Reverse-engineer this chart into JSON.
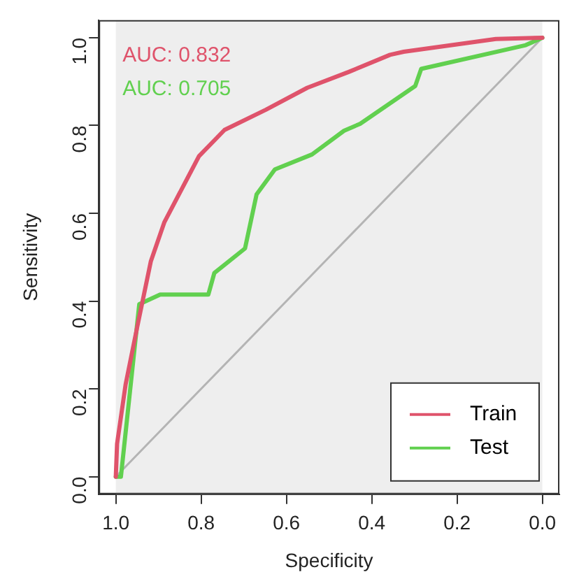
{
  "chart_data": {
    "type": "line",
    "xlabel": "Specificity",
    "ylabel": "Sensitivity",
    "xlim": [
      1.04,
      -0.04
    ],
    "ylim": [
      -0.04,
      1.04
    ],
    "xticks": [
      {
        "value": 1,
        "label": "1.0"
      },
      {
        "value": 0.8,
        "label": "0.8"
      },
      {
        "value": 0.6,
        "label": "0.6"
      },
      {
        "value": 0.4,
        "label": "0.4"
      },
      {
        "value": 0.2,
        "label": "0.2"
      },
      {
        "value": 0,
        "label": "0.0"
      }
    ],
    "yticks": [
      {
        "value": 0,
        "label": "0.0"
      },
      {
        "value": 0.2,
        "label": "0.2"
      },
      {
        "value": 0.4,
        "label": "0.4"
      },
      {
        "value": 0.6,
        "label": "0.6"
      },
      {
        "value": 0.8,
        "label": "0.8"
      },
      {
        "value": 1,
        "label": "1.0"
      }
    ],
    "bands": [
      {
        "axis": "x",
        "from": 1,
        "to": 0,
        "color": "#eeeeee"
      }
    ],
    "series": [
      {
        "name": "Train",
        "type": "line",
        "color": "#df536b",
        "x": [
          1,
          0.997,
          0.977,
          0.95,
          0.918,
          0.886,
          0.805,
          0.745,
          0.648,
          0.551,
          0.454,
          0.357,
          0.325,
          0.109,
          0
        ],
        "values": [
          0,
          0.075,
          0.21,
          0.34,
          0.49,
          0.58,
          0.73,
          0.79,
          0.836,
          0.886,
          0.922,
          0.961,
          0.968,
          0.997,
          1
        ]
      },
      {
        "name": "Test",
        "color": "#61d04f",
        "x": [
          1,
          0.988,
          0.945,
          0.896,
          0.783,
          0.769,
          0.697,
          0.67,
          0.627,
          0.54,
          0.465,
          0.427,
          0.298,
          0.284,
          0.039,
          0
        ],
        "values": [
          0,
          0,
          0.393,
          0.415,
          0.415,
          0.464,
          0.52,
          0.643,
          0.7,
          0.734,
          0.788,
          0.804,
          0.89,
          0.929,
          0.983,
          1
        ]
      },
      {
        "type": "line",
        "color": "#b4b4b4",
        "x": [
          1,
          0.5,
          0
        ],
        "values": [
          0,
          0.5,
          1
        ]
      }
    ],
    "annotations": [
      "AUC: 0.832",
      "AUC: 0.705"
    ],
    "legend": "bottom right",
    "grid": false
  }
}
